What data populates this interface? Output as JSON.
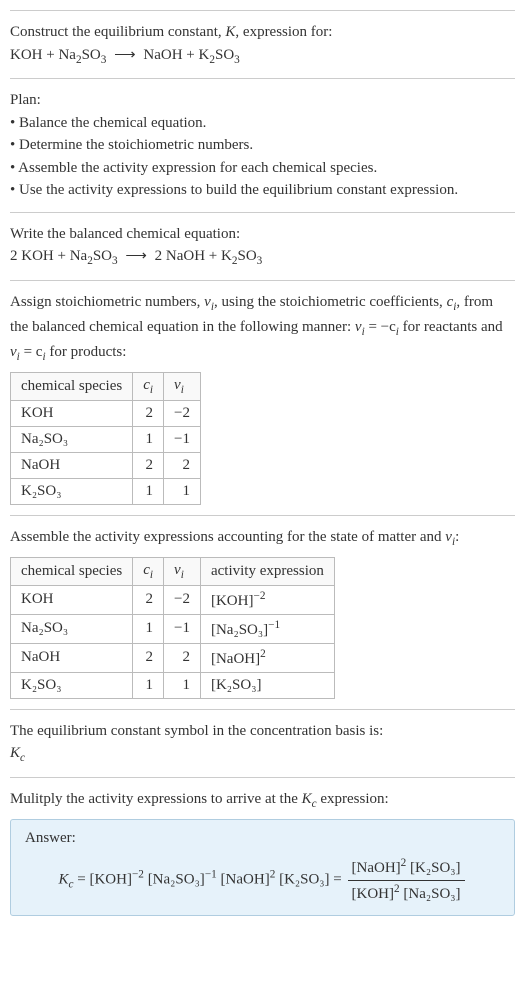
{
  "intro": {
    "line1_a": "Construct the equilibrium constant, ",
    "line1_b": ", expression for:",
    "K": "K",
    "eq_l": "KOH + Na",
    "eq_l2": "SO",
    "eq_r1": "NaOH + K",
    "eq_r2": "SO",
    "sub2": "2",
    "sub3": "3",
    "arrow": "⟶"
  },
  "plan": {
    "title": "Plan:",
    "b1": "• Balance the chemical equation.",
    "b2": "• Determine the stoichiometric numbers.",
    "b3": "• Assemble the activity expression for each chemical species.",
    "b4": "• Use the activity expressions to build the equilibrium constant expression."
  },
  "balanced": {
    "title": "Write the balanced chemical equation:",
    "l1": "2 KOH + Na",
    "l2": "SO",
    "r1": "2 NaOH + K",
    "r2": "SO",
    "sub2": "2",
    "sub3": "3",
    "arrow": "⟶"
  },
  "assign": {
    "t1": "Assign stoichiometric numbers, ",
    "nu_i": "ν",
    "sub_i": "i",
    "t2": ", using the stoichiometric coefficients, ",
    "c_i": "c",
    "t3": ", from the balanced chemical equation in the following manner: ",
    "rel1a": "ν",
    "rel1b": " = −c",
    "t4": " for reactants and ",
    "rel2a": "ν",
    "rel2b": " = c",
    "t5": " for products:",
    "headers": {
      "h1": "chemical species",
      "h2": "c",
      "h3": "ν"
    },
    "rows": [
      {
        "sp": "KOH",
        "c": "2",
        "nu": "−2"
      },
      {
        "sp": "Na₂SO₃",
        "c": "1",
        "nu": "−1"
      },
      {
        "sp": "NaOH",
        "c": "2",
        "nu": "2"
      },
      {
        "sp": "K₂SO₃",
        "c": "1",
        "nu": "1"
      }
    ]
  },
  "activity": {
    "t1": "Assemble the activity expressions accounting for the state of matter and ",
    "t2": ":",
    "headers": {
      "h1": "chemical species",
      "h2": "c",
      "h3": "ν",
      "h4": "activity expression"
    },
    "rows": [
      {
        "sp": "KOH",
        "c": "2",
        "nu": "−2",
        "ae_base": "[KOH]",
        "ae_exp": "−2"
      },
      {
        "sp": "Na₂SO₃",
        "c": "1",
        "nu": "−1",
        "ae_base": "[Na₂SO₃]",
        "ae_exp": "−1"
      },
      {
        "sp": "NaOH",
        "c": "2",
        "nu": "2",
        "ae_base": "[NaOH]",
        "ae_exp": "2"
      },
      {
        "sp": "K₂SO₃",
        "c": "1",
        "nu": "1",
        "ae_base": "[K₂SO₃]",
        "ae_exp": ""
      }
    ]
  },
  "kc": {
    "line": "The equilibrium constant symbol in the concentration basis is:",
    "sym": "K",
    "sub": "c"
  },
  "mult": {
    "line": "Mulitply the activity expressions to arrive at the ",
    "k": "K",
    "sub": "c",
    "line2": " expression:"
  },
  "answer": {
    "label": "Answer:",
    "lhs_k": "K",
    "lhs_sub": "c",
    "eq": " = ",
    "p1_base": "[KOH]",
    "p1_exp": "−2",
    "p2_base": "[Na₂SO₃]",
    "p2_exp": "−1",
    "p3_base": "[NaOH]",
    "p3_exp": "2",
    "p4_base": "[K₂SO₃]",
    "eq2": " = ",
    "num1_base": "[NaOH]",
    "num1_exp": "2",
    "num2_base": "[K₂SO₃]",
    "den1_base": "[KOH]",
    "den1_exp": "2",
    "den2_base": "[Na₂SO₃]"
  }
}
